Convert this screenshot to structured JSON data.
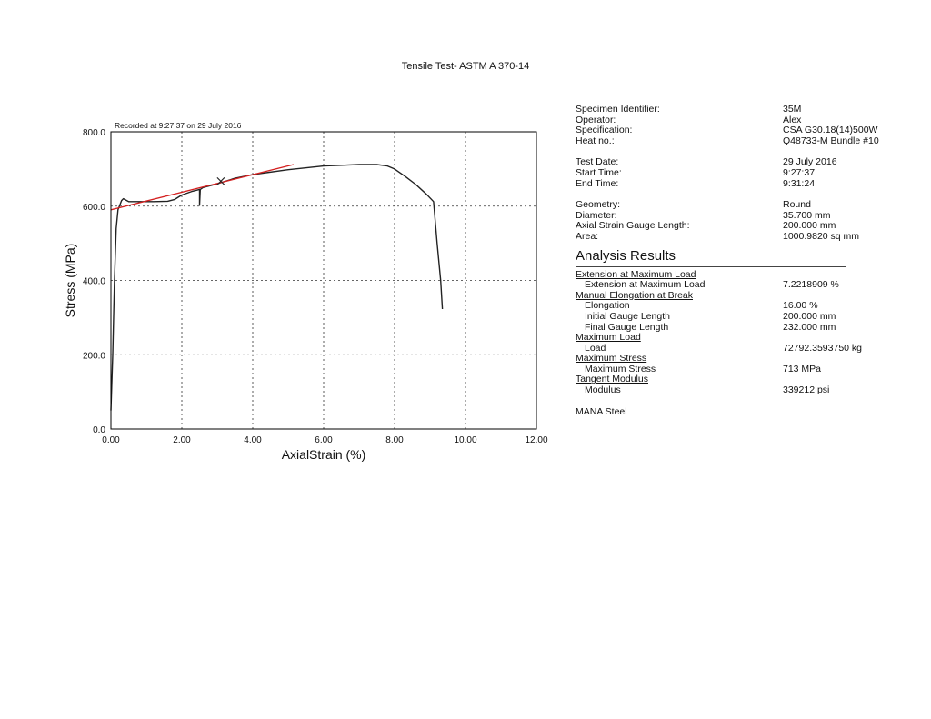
{
  "page_title": "Tensile Test- ASTM A 370-14",
  "chart_data": {
    "type": "line",
    "annotation": "Recorded at 9:27:37 on 29 July 2016",
    "xlabel": "AxialStrain (%)",
    "ylabel": "Stress (MPa)",
    "xlim": [
      0,
      12
    ],
    "ylim": [
      0,
      800
    ],
    "x_ticks": [
      "0.00",
      "2.00",
      "4.00",
      "6.00",
      "8.00",
      "10.00",
      "12.00"
    ],
    "y_ticks": [
      "0.0",
      "200.0",
      "400.0",
      "600.0",
      "800.0"
    ],
    "grid": true,
    "series": [
      {
        "color": "#222222",
        "points": [
          [
            0,
            50
          ],
          [
            0.05,
            200
          ],
          [
            0.1,
            400
          ],
          [
            0.15,
            540
          ],
          [
            0.2,
            590
          ],
          [
            0.3,
            615
          ],
          [
            0.35,
            620
          ],
          [
            0.5,
            612
          ],
          [
            0.8,
            612
          ],
          [
            1.2,
            612
          ],
          [
            1.6,
            613
          ],
          [
            1.8,
            618
          ],
          [
            2.0,
            630
          ],
          [
            2.3,
            640
          ],
          [
            2.5,
            645
          ],
          [
            2.5,
            602
          ],
          [
            2.52,
            645
          ],
          [
            2.6,
            650
          ],
          [
            3.0,
            660
          ],
          [
            3.5,
            675
          ],
          [
            4.0,
            685
          ],
          [
            5.0,
            698
          ],
          [
            6.0,
            708
          ],
          [
            7.0,
            712
          ],
          [
            7.5,
            712
          ],
          [
            7.8,
            708
          ],
          [
            8.0,
            700
          ],
          [
            8.3,
            680
          ],
          [
            8.6,
            658
          ],
          [
            8.9,
            632
          ],
          [
            9.1,
            612
          ],
          [
            9.2,
            500
          ],
          [
            9.3,
            400
          ],
          [
            9.35,
            323
          ]
        ]
      },
      {
        "color": "#d42020",
        "points": [
          [
            0,
            590
          ],
          [
            5.15,
            712
          ]
        ]
      }
    ],
    "markers": [
      {
        "symbol": "x",
        "x": 3.1,
        "y": 667,
        "color": "#222222"
      }
    ]
  },
  "specimen": [
    {
      "label": "Specimen Identifier:",
      "value": "35M"
    },
    {
      "label": "Operator:",
      "value": "Alex"
    },
    {
      "label": "Specification:",
      "value": "CSA G30.18(14)500W"
    },
    {
      "label": "Heat no.:",
      "value": "Q48733-M Bundle #10"
    }
  ],
  "times": [
    {
      "label": "Test Date:",
      "value": "29 July 2016"
    },
    {
      "label": "Start Time:",
      "value": "9:27:37"
    },
    {
      "label": "End Time:",
      "value": "9:31:24"
    }
  ],
  "geometry": [
    {
      "label": "Geometry:",
      "value": "Round"
    },
    {
      "label": "Diameter:",
      "value": "35.700 mm"
    },
    {
      "label": "Axial Strain Gauge Length:",
      "value": "200.000 mm"
    },
    {
      "label": "Area:",
      "value": "1000.9820 sq mm"
    }
  ],
  "analysis": {
    "heading": "Analysis Results",
    "groups": [
      {
        "title": "Extension at Maximum Load",
        "items": [
          {
            "label": "Extension at Maximum Load",
            "value": "7.2218909 %"
          }
        ]
      },
      {
        "title": "Manual Elongation at Break",
        "items": [
          {
            "label": "Elongation",
            "value": "16.00 %"
          },
          {
            "label": "Initial Gauge Length",
            "value": "200.000 mm"
          },
          {
            "label": "Final Gauge Length",
            "value": "232.000 mm"
          }
        ]
      },
      {
        "title": "Maximum Load",
        "items": [
          {
            "label": "Load",
            "value": "72792.3593750 kg"
          }
        ]
      },
      {
        "title": "Maximum Stress",
        "items": [
          {
            "label": "Maximum Stress",
            "value": "713 MPa"
          }
        ]
      },
      {
        "title": "Tangent Modulus",
        "items": [
          {
            "label": "Modulus",
            "value": "339212 psi"
          }
        ]
      }
    ]
  },
  "company": "MANA Steel"
}
